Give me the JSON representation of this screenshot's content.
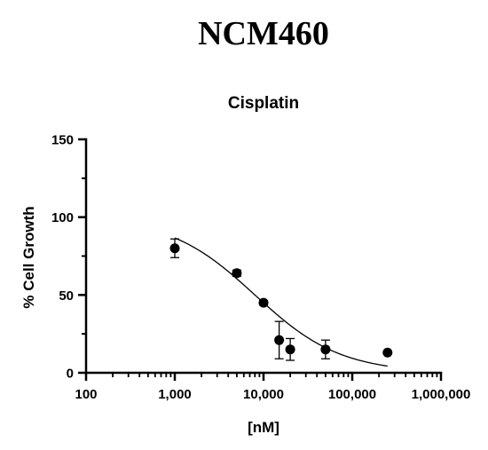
{
  "page": {
    "header_title": "NCM460"
  },
  "chart_data": {
    "type": "scatter",
    "title": "Cisplatin",
    "xlabel": "[nM]",
    "ylabel": "% Cell Growth",
    "x_scale": "log",
    "xlim": [
      100,
      1000000
    ],
    "ylim": [
      0,
      150
    ],
    "x_ticks": [
      100,
      1000,
      10000,
      100000,
      1000000
    ],
    "x_tick_labels": [
      "100",
      "1,000",
      "10,000",
      "100,000",
      "1,000,000"
    ],
    "y_ticks": [
      0,
      50,
      100,
      150
    ],
    "y_tick_labels": [
      "0",
      "50",
      "100",
      "150"
    ],
    "grid": false,
    "legend": "none",
    "series": [
      {
        "x": [
          1000,
          5000,
          10000,
          15000,
          20000,
          50000,
          250000
        ],
        "y": [
          80,
          64,
          45,
          21,
          15,
          15,
          13
        ],
        "error": [
          6,
          2,
          1.5,
          12,
          7,
          6,
          0
        ],
        "marker": "circle",
        "color": "#000000"
      }
    ],
    "fit_curve": {
      "type": "sigmoidal dose-response",
      "top": 100,
      "bottom": 0,
      "ec50": 8000,
      "hill_slope": 0.9,
      "x_range": [
        1000,
        250000
      ],
      "color": "#000000"
    }
  }
}
